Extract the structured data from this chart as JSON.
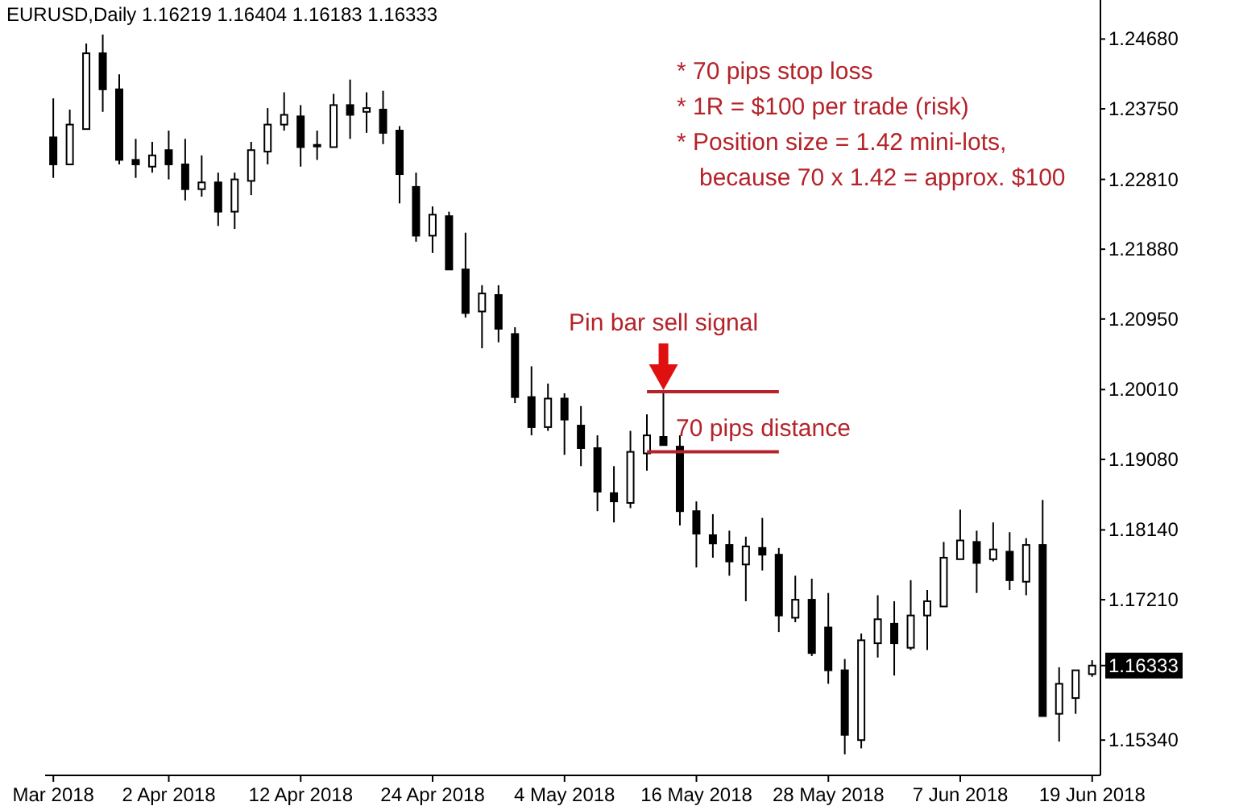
{
  "chart_data": {
    "type": "candlestick",
    "title": "EURUSD,Daily  1.16219 1.16404 1.16183 1.16333",
    "categories": [
      "Mar 2018",
      null,
      null,
      null,
      null,
      null,
      null,
      "2 Apr 2018",
      null,
      null,
      null,
      null,
      null,
      null,
      null,
      "12 Apr 2018",
      null,
      null,
      null,
      null,
      null,
      null,
      null,
      "24 Apr 2018",
      null,
      null,
      null,
      null,
      null,
      null,
      null,
      "4 May 2018",
      null,
      null,
      null,
      null,
      null,
      null,
      null,
      "16 May 2018",
      null,
      null,
      null,
      null,
      null,
      null,
      null,
      "28 May 2018",
      null,
      null,
      null,
      null,
      null,
      null,
      null,
      "7 Jun 2018",
      null,
      null,
      null,
      null,
      null,
      null,
      null,
      "19 Jun 2018"
    ],
    "ohlc": [
      [
        1.2337,
        1.2389,
        1.2283,
        1.2301
      ],
      [
        1.2301,
        1.2374,
        1.23,
        1.2354
      ],
      [
        1.2348,
        1.2462,
        1.2348,
        1.2449
      ],
      [
        1.2449,
        1.2474,
        1.2371,
        1.2401
      ],
      [
        1.2401,
        1.2421,
        1.2301,
        1.2307
      ],
      [
        1.2307,
        1.2335,
        1.2283,
        1.2301
      ],
      [
        1.2298,
        1.2331,
        1.229,
        1.2313
      ],
      [
        1.232,
        1.2346,
        1.2281,
        1.2301
      ],
      [
        1.2301,
        1.2335,
        1.2253,
        1.2268
      ],
      [
        1.2268,
        1.2313,
        1.2258,
        1.2277
      ],
      [
        1.2277,
        1.229,
        1.2219,
        1.2238
      ],
      [
        1.2238,
        1.229,
        1.2215,
        1.2281
      ],
      [
        1.2279,
        1.2331,
        1.226,
        1.232
      ],
      [
        1.2318,
        1.2376,
        1.2301,
        1.2354
      ],
      [
        1.2354,
        1.2397,
        1.2346,
        1.2367
      ],
      [
        1.2365,
        1.238,
        1.2298,
        1.2324
      ],
      [
        1.2327,
        1.2346,
        1.2307,
        1.2326
      ],
      [
        1.2324,
        1.2395,
        1.2324,
        1.238
      ],
      [
        1.238,
        1.2414,
        1.2335,
        1.2367
      ],
      [
        1.2371,
        1.2397,
        1.2343,
        1.2376
      ],
      [
        1.2374,
        1.2399,
        1.2328,
        1.2343
      ],
      [
        1.2346,
        1.2352,
        1.2249,
        1.2288
      ],
      [
        1.2271,
        1.229,
        1.2198,
        1.2206
      ],
      [
        1.2206,
        1.2245,
        1.2183,
        1.2234
      ],
      [
        1.2232,
        1.2238,
        1.2161,
        1.2161
      ],
      [
        1.2161,
        1.221,
        1.2097,
        1.2103
      ],
      [
        1.2105,
        1.214,
        1.2056,
        1.2129
      ],
      [
        1.2127,
        1.214,
        1.2064,
        1.2082
      ],
      [
        1.2075,
        1.2084,
        1.1983,
        1.1991
      ],
      [
        1.1991,
        1.2032,
        1.194,
        1.1951
      ],
      [
        1.1951,
        1.2009,
        1.1946,
        1.1989
      ],
      [
        1.1989,
        1.1996,
        1.1914,
        1.1961
      ],
      [
        1.1953,
        1.1979,
        1.1899,
        1.1923
      ],
      [
        1.1923,
        1.194,
        1.1839,
        1.1865
      ],
      [
        1.1863,
        1.1899,
        1.1824,
        1.1852
      ],
      [
        1.185,
        1.1946,
        1.1843,
        1.1918
      ],
      [
        1.1916,
        1.1968,
        1.1893,
        1.194
      ],
      [
        1.1938,
        1.1998,
        1.1927,
        1.1927
      ],
      [
        1.1925,
        1.194,
        1.182,
        1.1839
      ],
      [
        1.1839,
        1.1852,
        1.1764,
        1.1809
      ],
      [
        1.1807,
        1.1835,
        1.1777,
        1.1796
      ],
      [
        1.1794,
        1.1813,
        1.1753,
        1.1772
      ],
      [
        1.1768,
        1.1805,
        1.1719,
        1.1792
      ],
      [
        1.179,
        1.183,
        1.176,
        1.1781
      ],
      [
        1.1781,
        1.179,
        1.1678,
        1.17
      ],
      [
        1.1697,
        1.1753,
        1.1691,
        1.1721
      ],
      [
        1.1721,
        1.1749,
        1.1646,
        1.165
      ],
      [
        1.1684,
        1.173,
        1.1609,
        1.1627
      ],
      [
        1.1627,
        1.1642,
        1.1515,
        1.1541
      ],
      [
        1.1534,
        1.1676,
        1.1523,
        1.1667
      ],
      [
        1.1663,
        1.1727,
        1.1644,
        1.1695
      ],
      [
        1.1689,
        1.1719,
        1.162,
        1.1663
      ],
      [
        1.1657,
        1.1747,
        1.1654,
        1.17
      ],
      [
        1.17,
        1.1734,
        1.1654,
        1.1719
      ],
      [
        1.1712,
        1.1798,
        1.1712,
        1.1777
      ],
      [
        1.1775,
        1.1841,
        1.1775,
        1.18
      ],
      [
        1.1798,
        1.1813,
        1.173,
        1.177
      ],
      [
        1.1775,
        1.1824,
        1.1772,
        1.1788
      ],
      [
        1.1785,
        1.1811,
        1.1734,
        1.1747
      ],
      [
        1.1745,
        1.1803,
        1.1727,
        1.1794
      ],
      [
        1.1794,
        1.1854,
        1.1566,
        1.1566
      ],
      [
        1.1569,
        1.1631,
        1.1532,
        1.1609
      ],
      [
        1.159,
        1.1627,
        1.1569,
        1.1627
      ],
      [
        1.16219,
        1.16404,
        1.16183,
        1.16333
      ]
    ],
    "colors": [
      "#000000",
      "#ffffff",
      "#ffffff",
      "#000000",
      "#000000",
      "#000000",
      "#ffffff",
      "#000000",
      "#000000",
      "#ffffff",
      "#000000",
      "#ffffff",
      "#ffffff",
      "#ffffff",
      "#ffffff",
      "#000000",
      "#000000",
      "#ffffff",
      "#000000",
      "#ffffff",
      "#000000",
      "#000000",
      "#000000",
      "#ffffff",
      "#000000",
      "#000000",
      "#ffffff",
      "#000000",
      "#000000",
      "#000000",
      "#ffffff",
      "#000000",
      "#000000",
      "#000000",
      "#000000",
      "#ffffff",
      "#ffffff",
      "#000000",
      "#000000",
      "#000000",
      "#000000",
      "#000000",
      "#ffffff",
      "#000000",
      "#000000",
      "#ffffff",
      "#000000",
      "#000000",
      "#000000",
      "#ffffff",
      "#ffffff",
      "#000000",
      "#ffffff",
      "#ffffff",
      "#ffffff",
      "#ffffff",
      "#000000",
      "#ffffff",
      "#000000",
      "#ffffff",
      "#000000",
      "#ffffff",
      "#ffffff",
      "#ffffff"
    ],
    "ylim": [
      1.1487,
      1.252
    ],
    "yticks": [
      {
        "value": 1.2468,
        "label": "1.24680"
      },
      {
        "value": 1.2375,
        "label": "1.23750"
      },
      {
        "value": 1.2281,
        "label": "1.22810"
      },
      {
        "value": 1.2188,
        "label": "1.21880"
      },
      {
        "value": 1.2095,
        "label": "1.20950"
      },
      {
        "value": 1.2001,
        "label": "1.20010"
      },
      {
        "value": 1.1908,
        "label": "1.19080"
      },
      {
        "value": 1.1814,
        "label": "1.18140"
      },
      {
        "value": 1.1721,
        "label": "1.17210"
      },
      1.16333,
      {
        "value": 1.1534,
        "label": "1.15340"
      }
    ],
    "ref_lines": [
      {
        "axis": "y",
        "value": 1.1998,
        "color": "#b5232a"
      },
      {
        "axis": "y",
        "value": 1.1918,
        "label": "70 pips distance",
        "color": "#b5232a"
      }
    ],
    "annotations": [
      "* 70 pips stop loss",
      "* 1R = $100 per trade (risk)",
      "* Position size = 1.42 mini-lots, because 70 x 1.42 = approx. $100",
      {
        "text": "Pin bar sell signal",
        "y": 1.1998
      }
    ]
  }
}
